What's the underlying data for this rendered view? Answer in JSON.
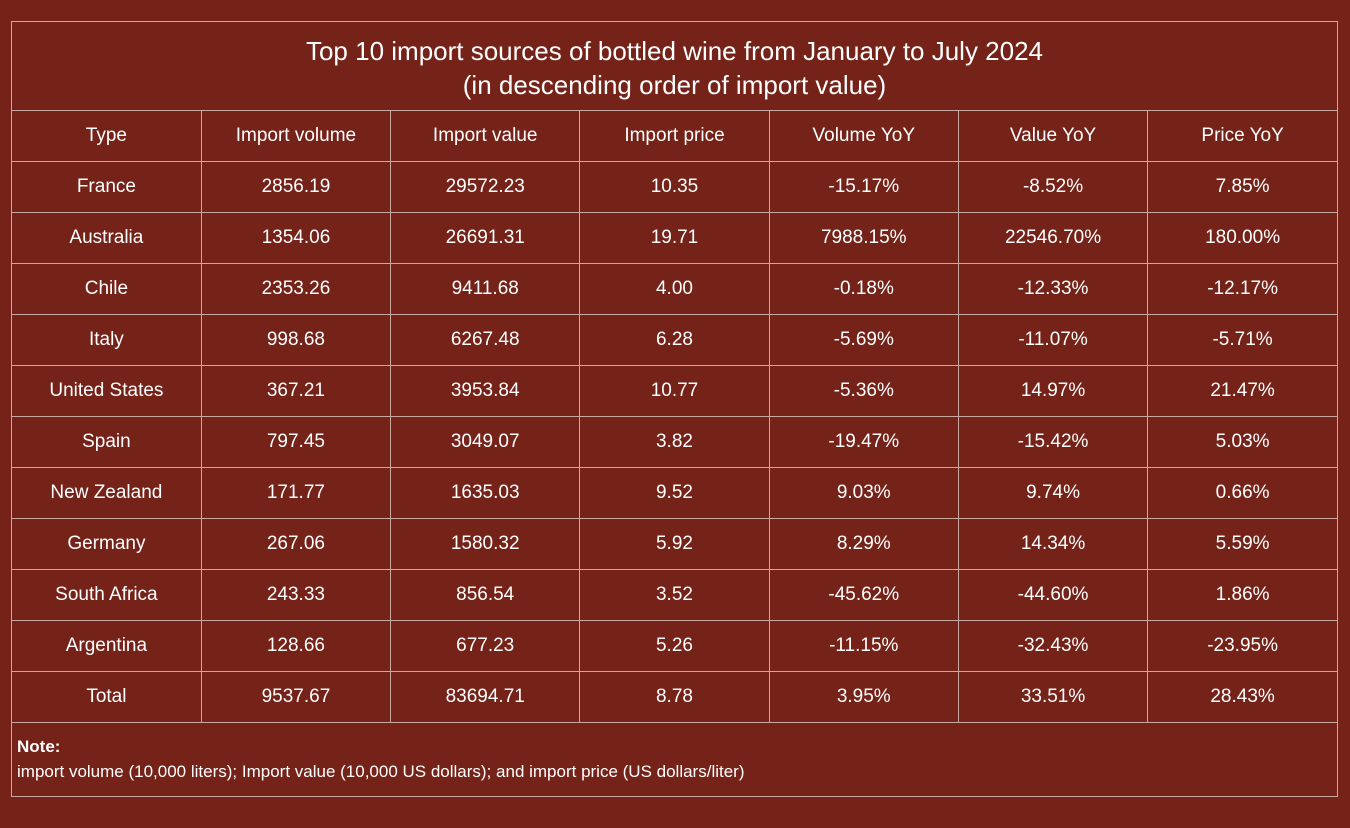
{
  "chart_data": {
    "type": "table",
    "title": "Top 10 import sources of bottled wine from January to July 2024",
    "subtitle": "(in descending order of import value)",
    "columns": [
      "Type",
      "Import volume",
      "Import value",
      "Import price",
      "Volume YoY",
      "Value YoY",
      "Price YoY"
    ],
    "rows": [
      [
        "France",
        "2856.19",
        "29572.23",
        "10.35",
        "-15.17%",
        "-8.52%",
        "7.85%"
      ],
      [
        "Australia",
        "1354.06",
        "26691.31",
        "19.71",
        "7988.15%",
        "22546.70%",
        "180.00%"
      ],
      [
        "Chile",
        "2353.26",
        "9411.68",
        "4.00",
        "-0.18%",
        "-12.33%",
        "-12.17%"
      ],
      [
        "Italy",
        "998.68",
        "6267.48",
        "6.28",
        "-5.69%",
        "-11.07%",
        "-5.71%"
      ],
      [
        "United States",
        "367.21",
        "3953.84",
        "10.77",
        "-5.36%",
        "14.97%",
        "21.47%"
      ],
      [
        "Spain",
        "797.45",
        "3049.07",
        "3.82",
        "-19.47%",
        "-15.42%",
        "5.03%"
      ],
      [
        "New Zealand",
        "171.77",
        "1635.03",
        "9.52",
        "9.03%",
        "9.74%",
        "0.66%"
      ],
      [
        "Germany",
        "267.06",
        "1580.32",
        "5.92",
        "8.29%",
        "14.34%",
        "5.59%"
      ],
      [
        "South Africa",
        "243.33",
        "856.54",
        "3.52",
        "-45.62%",
        "-44.60%",
        "1.86%"
      ],
      [
        "Argentina",
        "128.66",
        "677.23",
        "5.26",
        "-11.15%",
        "-32.43%",
        "-23.95%"
      ],
      [
        "Total",
        "9537.67",
        "83694.71",
        "8.78",
        "3.95%",
        "33.51%",
        "28.43%"
      ]
    ],
    "note_label": "Note:",
    "note": "import volume (10,000 liters); Import value (10,000 US dollars); and import price (US dollars/liter)"
  },
  "colors": {
    "background": "#752219",
    "text": "#ffffff",
    "border": "#c9a7a3"
  }
}
